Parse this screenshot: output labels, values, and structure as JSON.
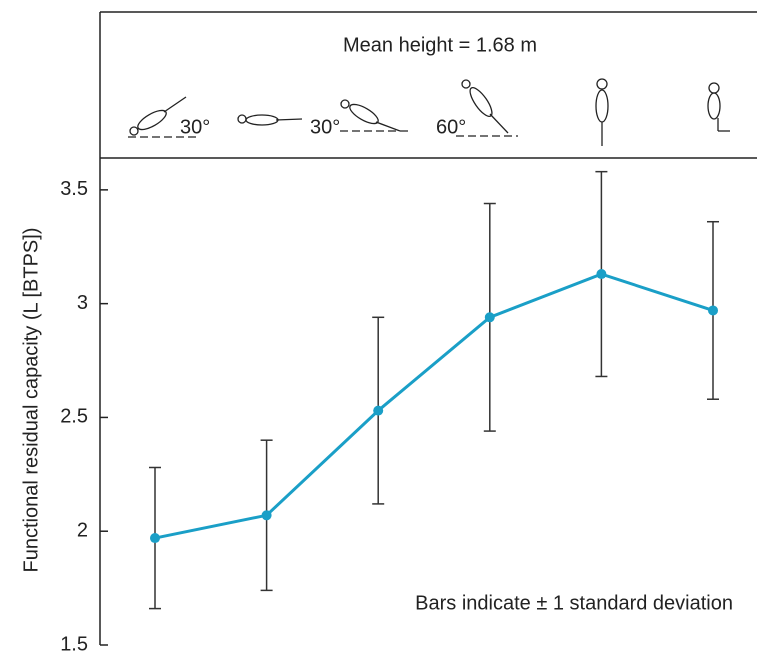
{
  "chart_data": {
    "type": "line",
    "title": "Mean height = 1.68 m",
    "y_label": "Functional residual capacity (L [BTPS])",
    "annotation": "Bars indicate ± 1 standard deviation",
    "posture_labels": [
      "30°",
      "30°",
      "60°"
    ],
    "categories": [
      null,
      null,
      null,
      null,
      null,
      null
    ],
    "values": [
      1.97,
      2.07,
      2.53,
      2.94,
      3.13,
      2.97
    ],
    "errors": [
      0.31,
      0.33,
      0.41,
      0.5,
      0.45,
      0.39
    ],
    "color": "#1a9fc7",
    "error_color": "#333333",
    "ylim": [
      1.5,
      3.64
    ],
    "yticks": [
      1.5,
      2.0,
      2.5,
      3.0,
      3.5
    ]
  }
}
